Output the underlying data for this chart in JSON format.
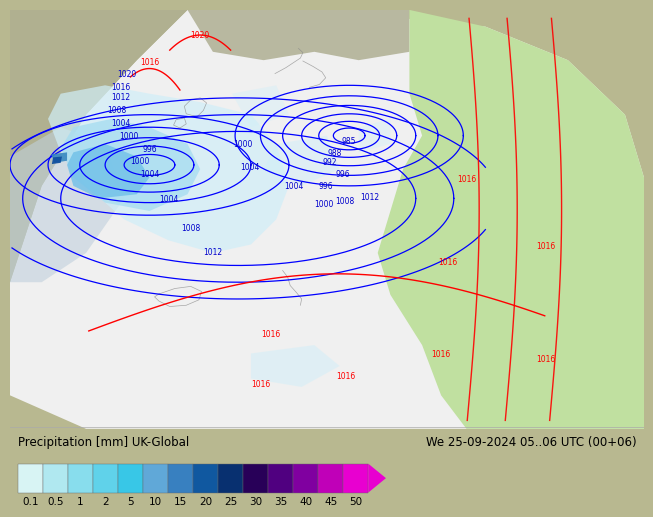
{
  "title_left": "Precipitation [mm] UK-Global",
  "title_right": "We 25-09-2024 05..06 UTC (00+06)",
  "colorbar_values": [
    0.1,
    0.5,
    1,
    2,
    5,
    10,
    15,
    20,
    25,
    30,
    35,
    40,
    45,
    50
  ],
  "colorbar_labels": [
    "0.1",
    "0.5",
    "1",
    "2",
    "5",
    "10",
    "15",
    "20",
    "25",
    "30",
    "35",
    "40",
    "45",
    "50"
  ],
  "colorbar_colors": [
    "#d8f4f4",
    "#b0e8f0",
    "#88dded",
    "#60d2ea",
    "#38c7e7",
    "#60a8d8",
    "#3880c0",
    "#1058a0",
    "#083070",
    "#280058",
    "#500080",
    "#8000a0",
    "#c000b8",
    "#e800d0"
  ],
  "bg_color": "#b8b890",
  "land_color": "#c8c8a0",
  "domain_color": "#f0f0f0",
  "green_area_color": "#c0e0a0",
  "sea_color": "#c8dce8",
  "precip_light1": "#d0eef8",
  "precip_light2": "#a8ddf0",
  "precip_med": "#70c0e8",
  "precip_dark": "#3888c0",
  "precip_vdark": "#1050a0",
  "precip_navy": "#082060",
  "label_fontsize": 8.5,
  "tick_fontsize": 7.5,
  "legend_bg": "#f0f0f0"
}
